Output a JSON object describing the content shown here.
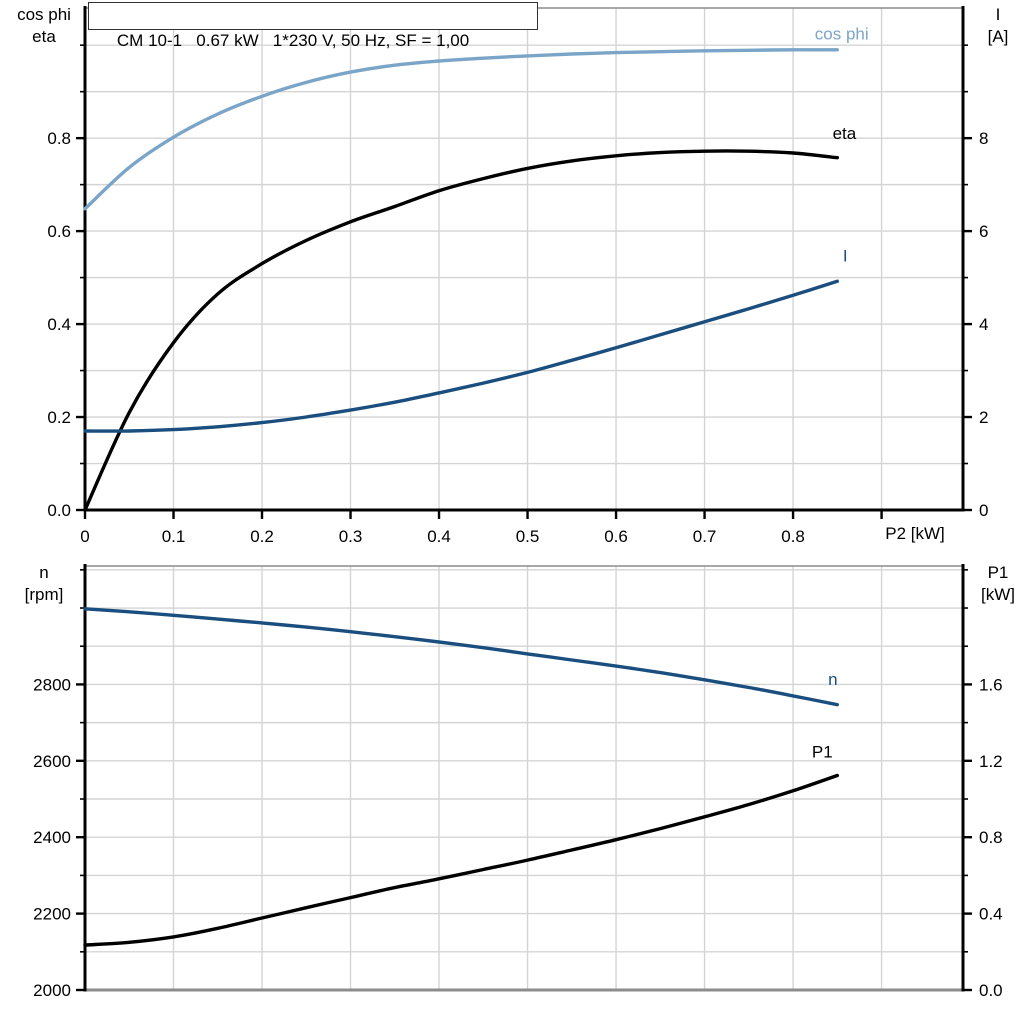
{
  "colors": {
    "light_blue": "#7aa5c8",
    "dark_blue": "#1a4e7e",
    "black": "#000000",
    "grid": "#d4d4d4",
    "frame_gray": "#8c8c8c",
    "axis": "#000000"
  },
  "chart_data": [
    {
      "id": "motor-top",
      "type": "line",
      "title": "CM 10-1   0.67 kW   1*230 V, 50 Hz, SF = 1,00",
      "axes": {
        "x": {
          "label": "P2 [kW]",
          "min": 0,
          "max": 0.992,
          "grid_step": 0.1,
          "axis_color": "black",
          "ticks": [
            0,
            0.1,
            0.2,
            0.3,
            0.4,
            0.5,
            0.6,
            0.7,
            0.8,
            0.9
          ],
          "tick_labels": [
            "0",
            "0.1",
            "0.2",
            "0.3",
            "0.4",
            "0.5",
            "0.6",
            "0.7",
            "0.8",
            ""
          ]
        },
        "left": {
          "label_lines": [
            "cos phi",
            "eta"
          ],
          "min": 0,
          "max": 1.08,
          "minor_step": 0.1,
          "major_ticks": [
            0.0,
            0.2,
            0.4,
            0.6,
            0.8
          ],
          "tick_labels": [
            "0.0",
            "0.2",
            "0.4",
            "0.6",
            "0.8"
          ]
        },
        "right": {
          "label_lines": [
            "I",
            "[A]"
          ],
          "min": 0,
          "max": 10.8,
          "minor_step": 1,
          "major_ticks": [
            0,
            2,
            4,
            6,
            8
          ],
          "tick_labels": [
            "0",
            "2",
            "4",
            "6",
            "8"
          ]
        }
      },
      "x": [
        0,
        0.05,
        0.1,
        0.15,
        0.2,
        0.25,
        0.3,
        0.35,
        0.4,
        0.45,
        0.5,
        0.55,
        0.6,
        0.65,
        0.7,
        0.75,
        0.8,
        0.85
      ],
      "series": [
        {
          "name": "cos phi",
          "axis": "left",
          "color": "light_blue",
          "label": {
            "text": "cos phi",
            "x": 0.855,
            "y": 1.012
          },
          "values": [
            0.648,
            0.737,
            0.802,
            0.852,
            0.89,
            0.92,
            0.942,
            0.957,
            0.966,
            0.972,
            0.977,
            0.981,
            0.984,
            0.986,
            0.988,
            0.989,
            0.99,
            0.99
          ]
        },
        {
          "name": "eta",
          "axis": "left",
          "color": "black",
          "label": {
            "text": "eta",
            "x": 0.858,
            "y": 0.798
          },
          "values": [
            0.0,
            0.21,
            0.36,
            0.465,
            0.53,
            0.58,
            0.62,
            0.653,
            0.687,
            0.713,
            0.735,
            0.751,
            0.762,
            0.769,
            0.772,
            0.772,
            0.768,
            0.758
          ]
        },
        {
          "name": "I",
          "axis": "right",
          "color": "dark_blue",
          "label": {
            "text": "I",
            "x": 0.859,
            "y": 5.35
          },
          "values": [
            1.7,
            1.7,
            1.73,
            1.79,
            1.88,
            2.0,
            2.15,
            2.32,
            2.52,
            2.73,
            2.96,
            3.22,
            3.49,
            3.77,
            4.05,
            4.33,
            4.62,
            4.92
          ]
        }
      ]
    },
    {
      "id": "motor-bottom",
      "type": "line",
      "title": "",
      "axes": {
        "x": {
          "label": "",
          "min": 0,
          "max": 0.992,
          "grid_step": 0.1,
          "axis_color": "gray",
          "ticks": [],
          "tick_labels": []
        },
        "left": {
          "label_lines": [
            "n",
            "[rpm]"
          ],
          "min": 2000,
          "max": 3110,
          "minor_step": 100,
          "major_ticks": [
            2000,
            2200,
            2400,
            2600,
            2800
          ],
          "tick_labels": [
            "2000",
            "2200",
            "2400",
            "2600",
            "2800"
          ]
        },
        "right": {
          "label_lines": [
            "P1",
            "[kW]"
          ],
          "min": 0,
          "max": 2.22,
          "minor_step": 0.2,
          "major_ticks": [
            0,
            0.4,
            0.8,
            1.2,
            1.6
          ],
          "tick_labels": [
            "0.0",
            "0.4",
            "0.8",
            "1.2",
            "1.6"
          ]
        }
      },
      "x": [
        0,
        0.05,
        0.1,
        0.15,
        0.2,
        0.25,
        0.3,
        0.35,
        0.4,
        0.45,
        0.5,
        0.55,
        0.6,
        0.65,
        0.7,
        0.75,
        0.8,
        0.85
      ],
      "series": [
        {
          "name": "n",
          "axis": "left",
          "color": "dark_blue",
          "label": {
            "text": "n",
            "x": 0.845,
            "y": 2798
          },
          "values": [
            2998,
            2990,
            2981,
            2971,
            2961,
            2950,
            2938,
            2925,
            2911,
            2896,
            2880,
            2864,
            2848,
            2831,
            2812,
            2792,
            2770,
            2747
          ]
        },
        {
          "name": "P1",
          "axis": "right",
          "color": "black",
          "label": {
            "text": "P1",
            "x": 0.833,
            "y": 1.218
          },
          "values": [
            0.235,
            0.25,
            0.278,
            0.323,
            0.377,
            0.431,
            0.484,
            0.536,
            0.582,
            0.631,
            0.68,
            0.733,
            0.787,
            0.845,
            0.907,
            0.971,
            1.043,
            1.123
          ]
        }
      ]
    }
  ]
}
